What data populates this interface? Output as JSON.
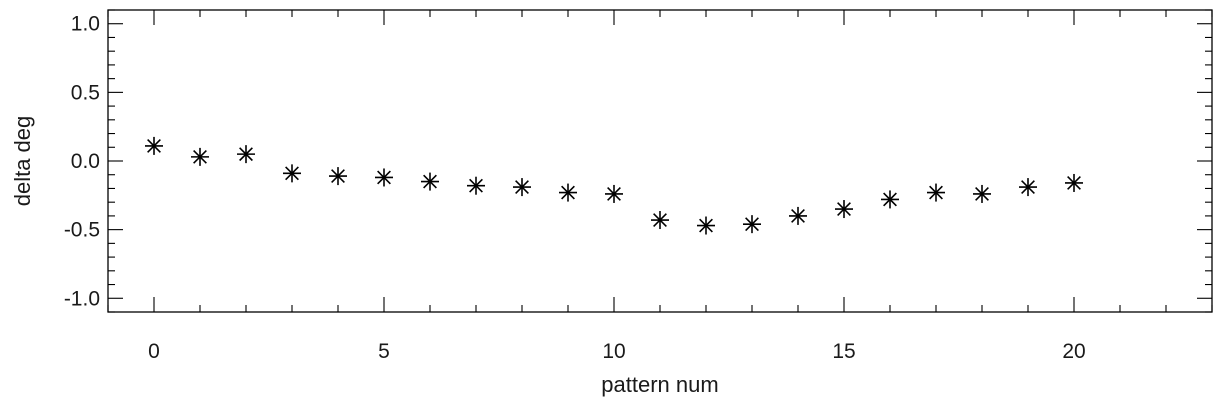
{
  "chart_data": {
    "type": "scatter",
    "title": "",
    "xlabel": "pattern num",
    "ylabel": "delta deg",
    "xlim": [
      -1,
      23
    ],
    "ylim": [
      -1.1,
      1.1
    ],
    "x_ticks": [
      0,
      5,
      10,
      15,
      20
    ],
    "x_tick_labels": [
      "0",
      "5",
      "10",
      "15",
      "20"
    ],
    "x_minor_step": 1,
    "y_ticks": [
      1.0,
      0.5,
      0.0,
      -0.5,
      -1.0
    ],
    "y_tick_labels": [
      "1.0",
      "0.5",
      "0.0",
      "-0.5",
      "-1.0"
    ],
    "y_minor_step": 0.1,
    "grid": false,
    "marker": "asterisk",
    "marker_color": "#000000",
    "series": [
      {
        "x": [
          0,
          1,
          2,
          3,
          4,
          5,
          6,
          7,
          8,
          9,
          10,
          11,
          12,
          13,
          14,
          15,
          16,
          17,
          18,
          19,
          20
        ],
        "y": [
          0.11,
          0.03,
          0.05,
          -0.09,
          -0.11,
          -0.12,
          -0.15,
          -0.18,
          -0.19,
          -0.23,
          -0.24,
          -0.43,
          -0.47,
          -0.46,
          -0.4,
          -0.35,
          -0.28,
          -0.23,
          -0.24,
          -0.19,
          -0.16
        ]
      }
    ]
  }
}
